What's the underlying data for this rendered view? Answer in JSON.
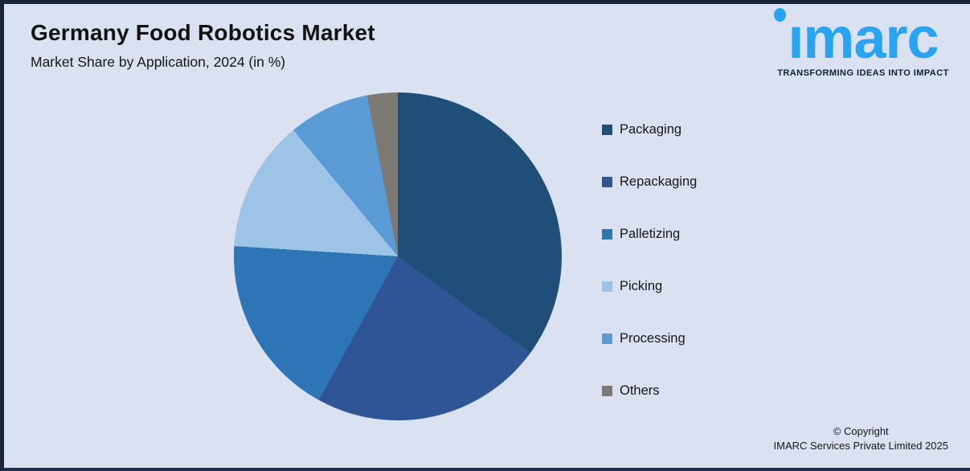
{
  "header": {
    "title": "Germany Food Robotics Market",
    "subtitle": "Market Share by Application, 2024 (in %)"
  },
  "logo": {
    "brand": "imarc",
    "tagline": "TRANSFORMING IDEAS INTO IMPACT",
    "brand_color": "#28a4f4",
    "tagline_color": "#0e2233"
  },
  "chart_data": {
    "type": "pie",
    "title": "Germany Food Robotics Market",
    "subtitle": "Market Share by Application, 2024 (in %)",
    "categories": [
      "Packaging",
      "Repackaging",
      "Palletizing",
      "Picking",
      "Processing",
      "Others"
    ],
    "values": [
      35,
      23,
      18,
      13,
      8,
      3
    ],
    "unit": "%",
    "colors": [
      "#1f4e78",
      "#2f5597",
      "#2e75b6",
      "#9dc3e6",
      "#5b9bd5",
      "#7c7873"
    ],
    "start_angle_deg": 0,
    "direction": "clockwise",
    "legend_position": "right",
    "data_labels": false
  },
  "footer": {
    "copyright_line1": "© Copyright",
    "copyright_line2": "IMARC Services Private Limited 2025"
  },
  "colors": {
    "background": "#dae1f0",
    "frame": "#1a2439",
    "text": "#161616"
  }
}
